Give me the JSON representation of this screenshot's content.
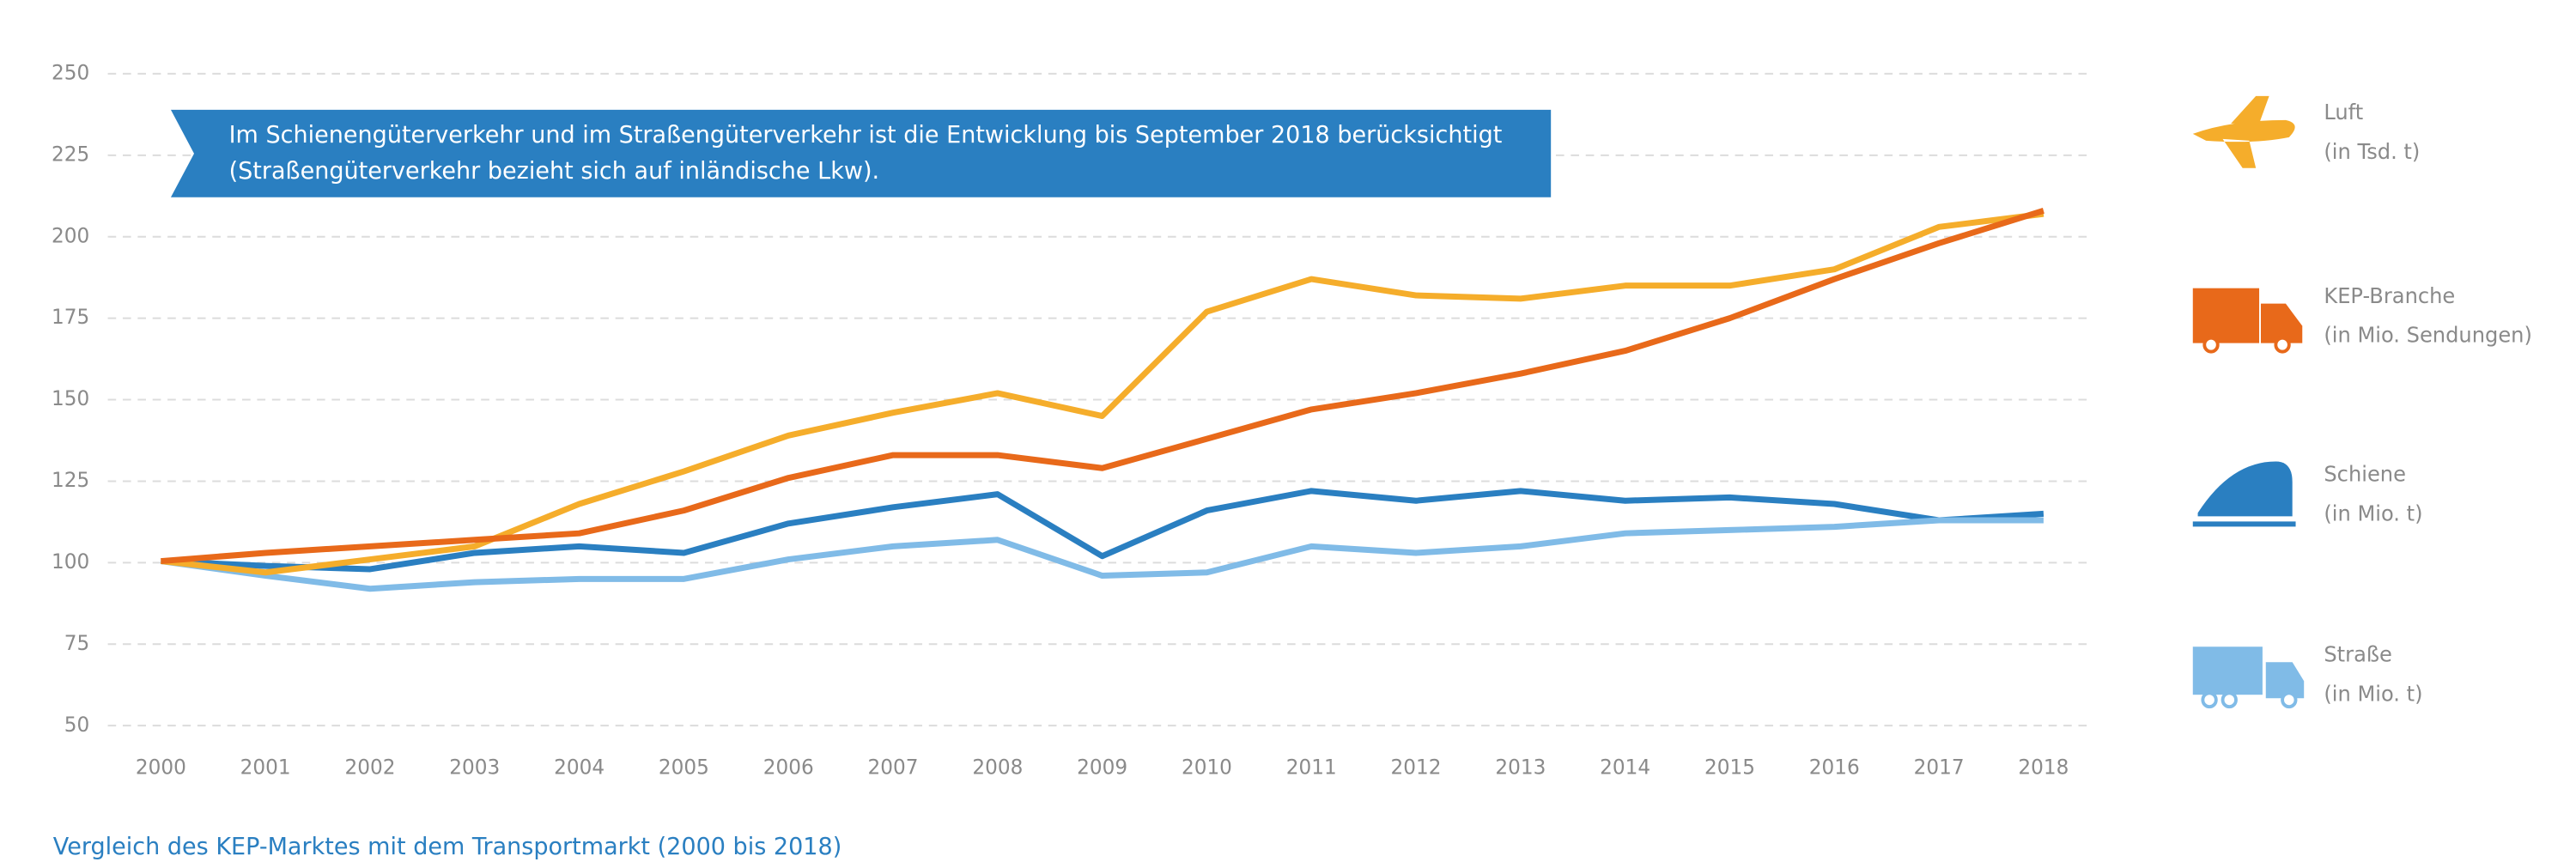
{
  "chart_data": {
    "type": "line",
    "note": "Im Schienengüterverkehr und im Straßengüterverkehr ist die Entwicklung bis September 2018 berücksichtigt (Straßengüterverkehr bezieht sich auf inländische Lkw).",
    "caption": "Vergleich des KEP-Marktes mit dem Transportmarkt (2000 bis 2018)",
    "categories": [
      "2000",
      "2001",
      "2002",
      "2003",
      "2004",
      "2005",
      "2006",
      "2007",
      "2008",
      "2009",
      "2010",
      "2011",
      "2012",
      "2013",
      "2014",
      "2015",
      "2016",
      "2017",
      "2018"
    ],
    "ylim": [
      50,
      250
    ],
    "yticks": [
      50,
      75,
      100,
      125,
      150,
      175,
      200,
      225,
      250
    ],
    "grid": true,
    "legend": "right",
    "series": [
      {
        "name": "Luft",
        "unit": "(in Tsd. t)",
        "color": "#f5ad2b",
        "values": [
          100.5,
          97,
          101,
          105,
          118,
          128,
          139,
          146,
          152,
          145,
          177,
          187,
          182,
          181,
          185,
          185,
          190,
          203,
          207
        ]
      },
      {
        "name": "KEP-Branche",
        "unit": "(in Mio. Sendungen)",
        "color": "#e8691a",
        "values": [
          100.5,
          103,
          105,
          107,
          109,
          116,
          126,
          133,
          133,
          129,
          138,
          147,
          152,
          158,
          165,
          175,
          187,
          198,
          208
        ]
      },
      {
        "name": "Schiene",
        "unit": "(in Mio. t)",
        "color": "#2a7fc1",
        "values": [
          100.5,
          99,
          98,
          103,
          105,
          103,
          112,
          117,
          121,
          102,
          116,
          122,
          119,
          122,
          119,
          120,
          118,
          113,
          115
        ]
      },
      {
        "name": "Straße",
        "unit": "(in Mio. t)",
        "color": "#80bbe7",
        "values": [
          100.5,
          96,
          92,
          94,
          95,
          95,
          101,
          105,
          107,
          96,
          97,
          105,
          103,
          105,
          109,
          110,
          111,
          113,
          113
        ]
      }
    ]
  }
}
